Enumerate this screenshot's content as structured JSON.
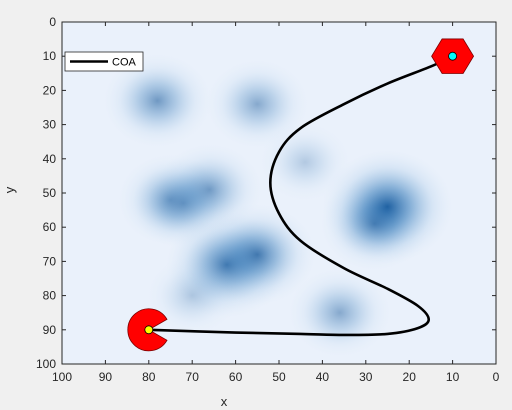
{
  "chart_data": {
    "type": "line",
    "xlabel": "x",
    "ylabel": "y",
    "xlim": [
      100,
      0
    ],
    "ylim": [
      100,
      0
    ],
    "x_reversed": true,
    "y_reversed": true,
    "grid": false,
    "legend_position": "top-left",
    "xticks": [
      100,
      90,
      80,
      70,
      60,
      50,
      40,
      30,
      20,
      10,
      0
    ],
    "yticks": [
      0,
      10,
      20,
      30,
      40,
      50,
      60,
      70,
      80,
      90,
      100
    ],
    "series": [
      {
        "name": "COA",
        "color": "#000000",
        "x": [
          80,
          60,
          45,
          35,
          25,
          18,
          15.5,
          18,
          25,
          35,
          45,
          50,
          52,
          50,
          45,
          35,
          25,
          15,
          10
        ],
        "y": [
          90,
          90.8,
          91.2,
          91.5,
          91.2,
          89.5,
          87,
          83,
          78,
          72,
          64,
          56,
          47,
          38,
          31,
          24,
          18,
          13,
          10
        ]
      }
    ],
    "heatmap_blobs": [
      {
        "x": 25,
        "y": 54,
        "strength": 0.95
      },
      {
        "x": 28,
        "y": 59,
        "strength": 0.55
      },
      {
        "x": 62,
        "y": 71,
        "strength": 0.8
      },
      {
        "x": 55,
        "y": 68,
        "strength": 0.7
      },
      {
        "x": 75,
        "y": 52,
        "strength": 0.5
      },
      {
        "x": 72,
        "y": 53,
        "strength": 0.45
      },
      {
        "x": 66,
        "y": 49,
        "strength": 0.5
      },
      {
        "x": 55,
        "y": 24,
        "strength": 0.45
      },
      {
        "x": 78,
        "y": 23,
        "strength": 0.55
      },
      {
        "x": 36,
        "y": 85,
        "strength": 0.45
      },
      {
        "x": 44,
        "y": 41,
        "strength": 0.25
      },
      {
        "x": 70,
        "y": 80,
        "strength": 0.25
      }
    ],
    "markers": [
      {
        "name": "start-marker",
        "x": 80,
        "y": 90,
        "color": "#ff0000",
        "center_color": "#ffff00",
        "shape": "pacman"
      },
      {
        "name": "end-marker",
        "x": 10,
        "y": 10,
        "color": "#ff0000",
        "center_color": "#00ffff",
        "shape": "hexagon"
      }
    ]
  },
  "colors": {
    "figure_bg": "#f0f0f0",
    "axes_bg": "#eaf1fb",
    "axis": "#262626",
    "line": "#000000"
  }
}
